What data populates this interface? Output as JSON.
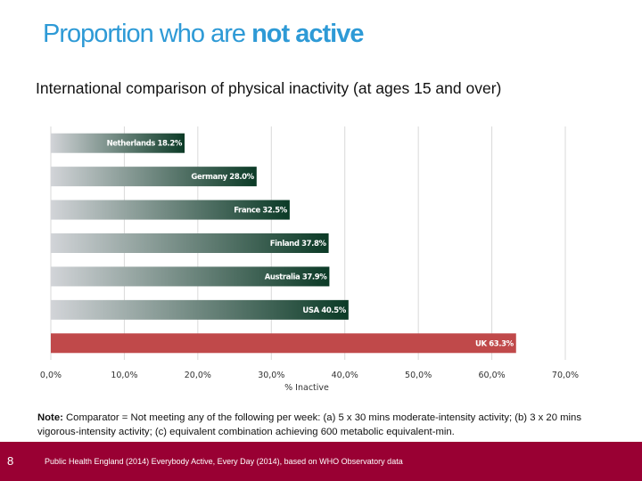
{
  "slide": {
    "title_regular": "Proportion who are ",
    "title_bold": "not active"
  },
  "chart_data": {
    "type": "bar",
    "orientation": "horizontal",
    "title": "International comparison of physical inactivity (at ages 15 and over)",
    "categories": [
      "Netherlands",
      "Germany",
      "France",
      "Finland",
      "Australia",
      "USA",
      "UK"
    ],
    "values": [
      18.2,
      28.0,
      32.5,
      37.8,
      37.9,
      40.5,
      63.3
    ],
    "data_labels": [
      "Netherlands 18.2%",
      "Germany 28.0%",
      "France 32.5%",
      "Finland 37.8%",
      "Australia 37.9%",
      "USA 40.5%",
      "UK 63.3%"
    ],
    "highlight_category": "UK",
    "xlabel": "% Inactive",
    "ylabel": "",
    "xlim": [
      0,
      70
    ],
    "xticks": [
      0,
      10,
      20,
      30,
      40,
      50,
      60,
      70
    ],
    "xtick_labels": [
      "0,0%",
      "10,0%",
      "20,0%",
      "30,0%",
      "40,0%",
      "50,0%",
      "60,0%",
      "70,0%"
    ],
    "grid": true,
    "colors": {
      "bar_dark": "#0b3a26",
      "bar_light": "#d2d4d8",
      "highlight": "#c0494a",
      "grid": "#d9d9d9"
    }
  },
  "note": {
    "label": "Note:",
    "text": " Comparator = Not meeting any of the following per week: (a) 5 x 30 mins moderate-intensity activity; (b) 3 x 20 mins vigorous-intensity activity; (c) equivalent combination achieving 600 metabolic equivalent-min."
  },
  "footer": {
    "page_number": "8",
    "source": "Public Health England (2014) Everybody Active, Every Day (2014),  based on WHO Observatory data",
    "color": "#990033"
  }
}
